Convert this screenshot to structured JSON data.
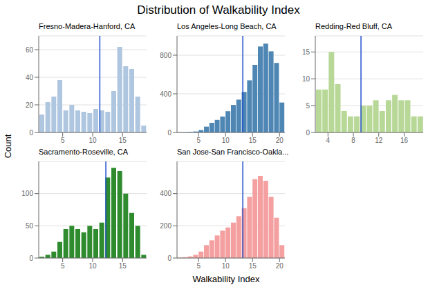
{
  "title": "Distribution of Walkability Index",
  "xlabel": "Walkability Index",
  "ylabel": "Count",
  "chart_data": [
    {
      "type": "histogram",
      "title": "Fresno-Madera-Hanford, CA",
      "color": "#aec6df",
      "vline": {
        "value": 11.2,
        "color": "#1f4fcc"
      },
      "xlim": [
        1,
        19
      ],
      "xticks": [
        5,
        10,
        15
      ],
      "ylim": [
        0,
        70
      ],
      "yticks": [
        0,
        20,
        40,
        60
      ],
      "grid": "y",
      "bins": [
        1,
        2,
        3,
        4,
        5,
        6,
        7,
        8,
        9,
        10,
        11,
        12,
        13,
        14,
        15,
        16,
        17,
        18,
        19
      ],
      "values": [
        13,
        22,
        26,
        38,
        16,
        20,
        16,
        15,
        14,
        17,
        16,
        15,
        30,
        62,
        48,
        46,
        26,
        5
      ]
    },
    {
      "type": "histogram",
      "title": "Los Angeles-Long Beach, CA",
      "color": "#4e86b4",
      "vline": {
        "value": 13.2,
        "color": "#1f4fcc"
      },
      "xlim": [
        1,
        21
      ],
      "xticks": [
        5,
        10,
        15,
        20
      ],
      "ylim": [
        0,
        1000
      ],
      "yticks": [
        0,
        400,
        800
      ],
      "grid": "y",
      "bins": [
        1,
        2,
        3,
        4,
        5,
        6,
        7,
        8,
        9,
        10,
        11,
        12,
        13,
        14,
        15,
        16,
        17,
        18,
        19,
        20,
        21
      ],
      "values": [
        2,
        3,
        5,
        10,
        25,
        60,
        100,
        130,
        165,
        220,
        285,
        340,
        420,
        540,
        700,
        890,
        920,
        840,
        720,
        310
      ]
    },
    {
      "type": "histogram",
      "title": "Redding-Red Bluff, CA",
      "color": "#b8d898",
      "vline": {
        "value": 9.2,
        "color": "#1f4fcc"
      },
      "xlim": [
        2,
        19
      ],
      "xticks": [
        4,
        8,
        12,
        16
      ],
      "ylim": [
        0,
        18
      ],
      "yticks": [
        0,
        5,
        10,
        15
      ],
      "grid": "y",
      "bins": [
        2,
        3,
        4,
        5,
        6,
        7,
        8,
        9,
        10,
        11,
        12,
        13,
        14,
        15,
        16,
        17,
        18,
        19
      ],
      "values": [
        8,
        8,
        15,
        9,
        4,
        3,
        3,
        5,
        5,
        6,
        4,
        6,
        7,
        6,
        6,
        3,
        3
      ]
    },
    {
      "type": "histogram",
      "title": "Sacramento-Roseville, CA",
      "color": "#2e8b2e",
      "vline": {
        "value": 12.2,
        "color": "#1f4fcc"
      },
      "xlim": [
        1,
        19
      ],
      "xticks": [
        5,
        10,
        15
      ],
      "ylim": [
        0,
        150
      ],
      "yticks": [
        0,
        50,
        100
      ],
      "grid": "y",
      "bins": [
        1,
        2,
        3,
        4,
        5,
        6,
        7,
        8,
        9,
        10,
        11,
        12,
        13,
        14,
        15,
        16,
        17,
        18,
        19
      ],
      "values": [
        2,
        5,
        10,
        25,
        45,
        50,
        45,
        40,
        50,
        45,
        55,
        125,
        140,
        135,
        100,
        70,
        50,
        5
      ]
    },
    {
      "type": "histogram",
      "title": "San Jose-San Francisco-Oakla...",
      "color": "#f4a0a0",
      "vline": {
        "value": 13.2,
        "color": "#1f4fcc"
      },
      "xlim": [
        1,
        21
      ],
      "xticks": [
        5,
        10,
        15,
        20
      ],
      "ylim": [
        0,
        600
      ],
      "yticks": [
        0,
        200,
        400
      ],
      "grid": "y",
      "bins": [
        1,
        2,
        3,
        4,
        5,
        6,
        7,
        8,
        9,
        10,
        11,
        12,
        13,
        14,
        15,
        16,
        17,
        18,
        19,
        20,
        21
      ],
      "values": [
        2,
        5,
        10,
        20,
        40,
        80,
        110,
        140,
        170,
        190,
        220,
        260,
        310,
        380,
        490,
        510,
        480,
        380,
        250,
        80
      ]
    }
  ]
}
